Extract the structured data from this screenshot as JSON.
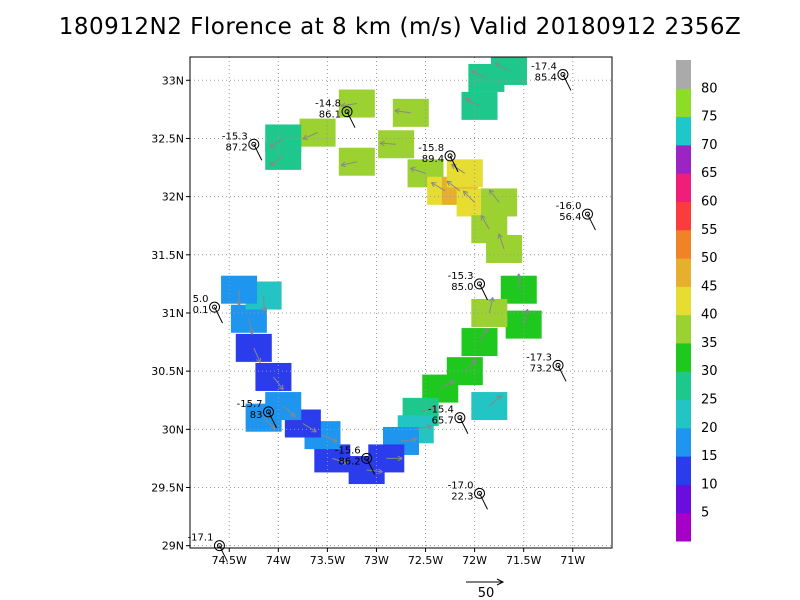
{
  "chart_data": {
    "type": "heatmap",
    "title": "180912N2 Florence at 8 km (m/s) Valid 20180912 2356Z",
    "xlabel": "",
    "ylabel": "",
    "xlim": [
      -74.9,
      -70.6
    ],
    "ylim": [
      28.98,
      33.2
    ],
    "x_ticks": [
      {
        "value": -74.5,
        "label": "74.5W"
      },
      {
        "value": -74.0,
        "label": "74W"
      },
      {
        "value": -73.5,
        "label": "73.5W"
      },
      {
        "value": -73.0,
        "label": "73W"
      },
      {
        "value": -72.5,
        "label": "72.5W"
      },
      {
        "value": -72.0,
        "label": "72W"
      },
      {
        "value": -71.5,
        "label": "71.5W"
      },
      {
        "value": -71.0,
        "label": "71W"
      }
    ],
    "y_ticks": [
      {
        "value": 29.0,
        "label": "29N"
      },
      {
        "value": 29.5,
        "label": "29.5N"
      },
      {
        "value": 30.0,
        "label": "30N"
      },
      {
        "value": 30.5,
        "label": "30.5N"
      },
      {
        "value": 31.0,
        "label": "31N"
      },
      {
        "value": 31.5,
        "label": "31.5N"
      },
      {
        "value": 32.0,
        "label": "32N"
      },
      {
        "value": 32.5,
        "label": "32.5N"
      },
      {
        "value": 33.0,
        "label": "33N"
      }
    ],
    "grid": true,
    "colorbar": {
      "labels": [
        "5",
        "10",
        "15",
        "20",
        "25",
        "30",
        "35",
        "40",
        "45",
        "50",
        "55",
        "60",
        "65",
        "70",
        "75",
        "80"
      ],
      "colors": [
        "#a600c8",
        "#6a0ee0",
        "#2a3cec",
        "#1e96f0",
        "#23c4c4",
        "#1ec88c",
        "#1ec81e",
        "#9bd232",
        "#e6dc32",
        "#e6af2d",
        "#f08228",
        "#fa3c3c",
        "#f01e78",
        "#9c24c4",
        "#1ec8c8",
        "#8cdc28",
        "#aaaaaa"
      ]
    },
    "series": [
      {
        "values": [
          {
            "lat": 33.08,
            "lon": -71.65,
            "v": 25
          },
          {
            "lat": 33.02,
            "lon": -71.88,
            "v": 25
          },
          {
            "lat": 32.78,
            "lon": -71.95,
            "v": 25
          },
          {
            "lat": 32.72,
            "lon": -72.65,
            "v": 35
          },
          {
            "lat": 32.8,
            "lon": -73.2,
            "v": 35
          },
          {
            "lat": 32.55,
            "lon": -73.6,
            "v": 35
          },
          {
            "lat": 32.5,
            "lon": -73.95,
            "v": 25
          },
          {
            "lat": 32.35,
            "lon": -73.95,
            "v": 25
          },
          {
            "lat": 32.3,
            "lon": -73.2,
            "v": 35
          },
          {
            "lat": 32.45,
            "lon": -72.8,
            "v": 35
          },
          {
            "lat": 32.2,
            "lon": -72.5,
            "v": 35
          },
          {
            "lat": 32.05,
            "lon": -72.3,
            "v": 40
          },
          {
            "lat": 32.05,
            "lon": -72.15,
            "v": 45
          },
          {
            "lat": 32.2,
            "lon": -72.1,
            "v": 40
          },
          {
            "lat": 31.95,
            "lon": -72.0,
            "v": 40
          },
          {
            "lat": 31.95,
            "lon": -71.75,
            "v": 35
          },
          {
            "lat": 31.72,
            "lon": -71.85,
            "v": 35
          },
          {
            "lat": 31.55,
            "lon": -71.7,
            "v": 35
          },
          {
            "lat": 31.2,
            "lon": -71.55,
            "v": 30
          },
          {
            "lat": 30.9,
            "lon": -71.5,
            "v": 30
          },
          {
            "lat": 31.0,
            "lon": -71.85,
            "v": 35
          },
          {
            "lat": 30.75,
            "lon": -71.95,
            "v": 30
          },
          {
            "lat": 30.5,
            "lon": -72.1,
            "v": 30
          },
          {
            "lat": 30.35,
            "lon": -72.35,
            "v": 30
          },
          {
            "lat": 30.15,
            "lon": -72.55,
            "v": 25
          },
          {
            "lat": 30.2,
            "lon": -71.85,
            "v": 20
          },
          {
            "lat": 30.0,
            "lon": -72.6,
            "v": 20
          },
          {
            "lat": 29.9,
            "lon": -72.75,
            "v": 15
          },
          {
            "lat": 29.75,
            "lon": -72.9,
            "v": 10
          },
          {
            "lat": 29.65,
            "lon": -73.1,
            "v": 10
          },
          {
            "lat": 29.75,
            "lon": -73.45,
            "v": 10
          },
          {
            "lat": 29.95,
            "lon": -73.55,
            "v": 15
          },
          {
            "lat": 30.05,
            "lon": -73.75,
            "v": 10
          },
          {
            "lat": 30.2,
            "lon": -73.95,
            "v": 15
          },
          {
            "lat": 30.45,
            "lon": -74.05,
            "v": 10
          },
          {
            "lat": 30.7,
            "lon": -74.25,
            "v": 10
          },
          {
            "lat": 30.95,
            "lon": -74.3,
            "v": 15
          },
          {
            "lat": 31.15,
            "lon": -74.15,
            "v": 20
          },
          {
            "lat": 31.2,
            "lon": -74.4,
            "v": 15
          },
          {
            "lat": 30.1,
            "lon": -74.15,
            "v": 15
          }
        ]
      }
    ],
    "dropsondes": [
      {
        "lat": 33.05,
        "lon": -71.1,
        "t": "-17.4",
        "p": "85.4"
      },
      {
        "lat": 32.73,
        "lon": -73.3,
        "t": "-14.8",
        "p": "86.1"
      },
      {
        "lat": 32.45,
        "lon": -74.25,
        "t": "-15.3",
        "p": "87.2"
      },
      {
        "lat": 32.35,
        "lon": -72.25,
        "t": "-15.8",
        "p": "89.4"
      },
      {
        "lat": 31.85,
        "lon": -70.85,
        "t": "-16.0",
        "p": "56.4"
      },
      {
        "lat": 31.25,
        "lon": -71.95,
        "t": "-15.3",
        "p": "85.0"
      },
      {
        "lat": 31.05,
        "lon": -74.65,
        "t": "5.0",
        "p": "0.1"
      },
      {
        "lat": 30.55,
        "lon": -71.15,
        "t": "-17.3",
        "p": "73.2"
      },
      {
        "lat": 30.1,
        "lon": -72.15,
        "t": "-15.4",
        "p": "65.7"
      },
      {
        "lat": 30.15,
        "lon": -74.1,
        "t": "-15.7",
        "p": "83"
      },
      {
        "lat": 29.75,
        "lon": -73.1,
        "t": "-15.6",
        "p": "86.2"
      },
      {
        "lat": 29.45,
        "lon": -71.95,
        "t": "-17.0",
        "p": "22.3"
      },
      {
        "lat": 29.0,
        "lon": -74.6,
        "t": "-17.1",
        "p": ""
      }
    ],
    "vector_key": {
      "label": "50"
    }
  }
}
